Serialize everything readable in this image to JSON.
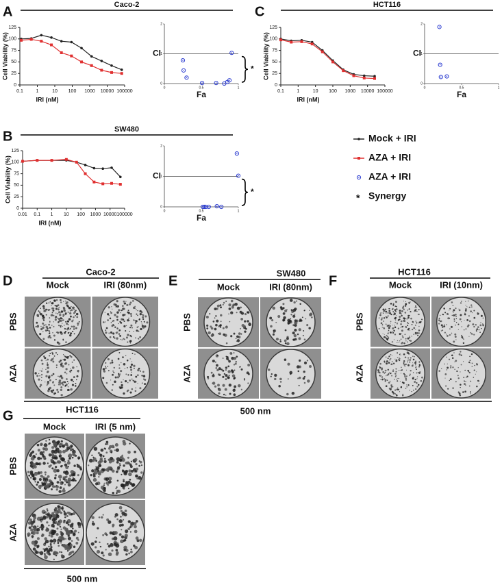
{
  "panel_labels": [
    "A",
    "B",
    "C",
    "D",
    "E",
    "F",
    "G"
  ],
  "chart_data": [
    {
      "type": "line",
      "title": "Caco-2",
      "xlabel": "IRI (nM)",
      "ylabel": "Cell Viability (%)",
      "xscale": "log",
      "xlim": [
        0.1,
        100000
      ],
      "xticks": [
        0.1,
        1,
        10,
        100,
        1000,
        10000,
        100000
      ],
      "ylim": [
        0,
        125
      ],
      "yticks": [
        0,
        25,
        50,
        75,
        100,
        125
      ],
      "x": [
        0.12,
        0.45,
        1.7,
        6.4,
        24,
        90,
        340,
        1280,
        4800,
        18000,
        68000
      ],
      "series": [
        {
          "name": "Mock + IRI",
          "color": "#222222",
          "marker": "circle",
          "values": [
            100,
            101,
            108,
            103,
            95,
            93,
            80,
            62,
            52,
            42,
            33
          ]
        },
        {
          "name": "AZA + IRI",
          "color": "#e03030",
          "marker": "square",
          "values": [
            97,
            99,
            95,
            87,
            70,
            63,
            50,
            42,
            32,
            27,
            25
          ]
        }
      ]
    },
    {
      "type": "scatter",
      "xlabel": "Fa",
      "xlim": [
        0,
        1
      ],
      "xticks": [
        0,
        0.5,
        1
      ],
      "ylim": [
        0,
        2
      ],
      "yticks": [
        0,
        1,
        2
      ],
      "reference_line": {
        "value": 1,
        "label": "CI"
      },
      "annotation": "*",
      "x": [
        0.25,
        0.26,
        0.3,
        0.51,
        0.7,
        0.81,
        0.85,
        0.88,
        0.91
      ],
      "series": [
        {
          "name": "AZA + IRI",
          "color": "#2a3bd0",
          "marker": "ring",
          "values": [
            0.78,
            0.44,
            0.2,
            0.02,
            0.02,
            0,
            0.05,
            0.11,
            1.03
          ]
        }
      ]
    },
    {
      "type": "line",
      "title": "HCT116",
      "xlabel": "IRI (nM)",
      "ylabel": "Cell Viability (%)",
      "xscale": "log",
      "xlim": [
        0.1,
        100000
      ],
      "xticks": [
        0.1,
        1,
        10,
        100,
        1000,
        10000,
        100000
      ],
      "ylim": [
        0,
        125
      ],
      "yticks": [
        0,
        25,
        50,
        75,
        100,
        125
      ],
      "x": [
        0.1,
        0.4,
        1.6,
        6.4,
        25,
        100,
        400,
        1600,
        6400,
        25600
      ],
      "series": [
        {
          "name": "Mock + IRI",
          "color": "#222222",
          "marker": "circle",
          "values": [
            100,
            96,
            97,
            93,
            75,
            53,
            33,
            23,
            20,
            19
          ]
        },
        {
          "name": "AZA + IRI",
          "color": "#e03030",
          "marker": "square",
          "values": [
            98,
            93,
            94,
            89,
            72,
            50,
            31,
            20,
            15,
            14
          ]
        }
      ]
    },
    {
      "type": "scatter",
      "xlabel": "Fa",
      "xlim": [
        0,
        1
      ],
      "xticks": [
        0,
        0.5,
        1
      ],
      "ylim": [
        0,
        2
      ],
      "yticks": [
        0,
        1,
        2
      ],
      "reference_line": {
        "value": 1,
        "label": "CI"
      },
      "x": [
        0.2,
        0.21,
        0.22,
        0.3
      ],
      "series": [
        {
          "name": "AZA + IRI",
          "color": "#2a3bd0",
          "marker": "ring",
          "values": [
            1.9,
            0.63,
            0.22,
            0.24
          ]
        }
      ]
    },
    {
      "type": "line",
      "title": "SW480",
      "xlabel": "IRI (nM)",
      "ylabel": "Cell Viability (%)",
      "xscale": "log",
      "xlim": [
        0.01,
        100000
      ],
      "xticks": [
        0.01,
        0.1,
        1,
        10,
        100,
        1000,
        10000,
        100000
      ],
      "ylim": [
        0,
        125
      ],
      "yticks": [
        0,
        25,
        50,
        75,
        100,
        125
      ],
      "x": [
        0.01,
        0.1,
        1,
        10,
        50,
        200,
        800,
        3200,
        12800,
        51200
      ],
      "series": [
        {
          "name": "Mock + IRI",
          "color": "#222222",
          "marker": "circle",
          "values": [
            102,
            104,
            104,
            104,
            100,
            94,
            87,
            86,
            88,
            68
          ]
        },
        {
          "name": "AZA + IRI",
          "color": "#e03030",
          "marker": "square",
          "values": [
            102,
            104,
            104,
            106,
            100,
            75,
            57,
            53,
            54,
            52
          ]
        }
      ]
    },
    {
      "type": "scatter",
      "xlabel": "Fa",
      "xlim": [
        0,
        1
      ],
      "xticks": [
        0,
        0.5,
        1
      ],
      "ylim": [
        0,
        2
      ],
      "yticks": [
        0,
        1,
        2
      ],
      "reference_line": {
        "value": 1,
        "label": "CI"
      },
      "annotation": "*",
      "x": [
        0.52,
        0.54,
        0.56,
        0.6,
        0.71,
        0.77,
        0.98,
        1.0
      ],
      "series": [
        {
          "name": "AZA + IRI",
          "color": "#2a3bd0",
          "marker": "ring",
          "values": [
            0,
            0,
            0,
            0,
            0.02,
            0,
            1.75,
            1.02
          ]
        }
      ]
    }
  ],
  "legend_note": {
    "symbol": "*",
    "label": "Synergy"
  },
  "plate_groups": [
    {
      "title": "Caco-2",
      "columns": [
        "Mock",
        "IRI (80nm)"
      ],
      "rows": [
        "PBS",
        "AZA"
      ]
    },
    {
      "title": "SW480",
      "columns": [
        "Mock",
        "IRI (80nm)"
      ],
      "rows": [
        "PBS",
        "AZA"
      ]
    },
    {
      "title": "HCT116",
      "columns": [
        "Mock",
        "IRI (10nm)"
      ],
      "rows": [
        "PBS",
        "AZA"
      ]
    },
    {
      "title": "HCT116",
      "columns": [
        "Mock",
        "IRI (5 nm)"
      ],
      "rows": [
        "PBS",
        "AZA"
      ]
    }
  ],
  "scale_labels": [
    "500 nm",
    "500 nm"
  ]
}
